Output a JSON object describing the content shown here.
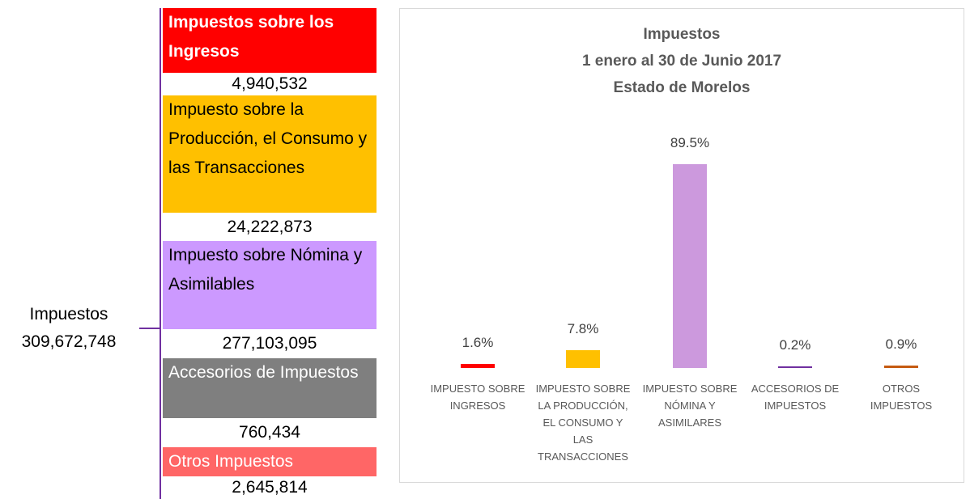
{
  "diagram": {
    "root": {
      "label": "Impuestos",
      "value": "309,672,748"
    },
    "items": [
      {
        "label": "Impuestos sobre los Ingresos",
        "value": "4,940,532"
      },
      {
        "label": "Impuesto sobre la Producción, el Consumo y las Transacciones",
        "value": "24,222,873"
      },
      {
        "label": "Impuesto sobre Nómina y Asimilables",
        "value": "277,103,095"
      },
      {
        "label": "Accesorios de Impuestos",
        "value": "760,434"
      },
      {
        "label": "Otros Impuestos",
        "value": "2,645,814"
      }
    ]
  },
  "chart_data": {
    "type": "bar",
    "title": [
      "Impuestos",
      "1 enero al 30 de Junio 2017",
      "Estado de Morelos"
    ],
    "categories": [
      "IMPUESTO SOBRE INGRESOS",
      "IMPUESTO SOBRE LA PRODUCCIÓN, EL CONSUMO Y LAS TRANSACCIONES",
      "IMPUESTO SOBRE NÓMINA Y ASIMILARES",
      "ACCESORIOS DE IMPUESTOS",
      "OTROS IMPUESTOS"
    ],
    "values": [
      1.6,
      7.8,
      89.5,
      0.2,
      0.9
    ],
    "value_labels": [
      "1.6%",
      "7.8%",
      "89.5%",
      "0.2%",
      "0.9%"
    ],
    "colors": [
      "#ff0000",
      "#ffc000",
      "#cc99dd",
      "#7030a0",
      "#c55a11"
    ]
  }
}
